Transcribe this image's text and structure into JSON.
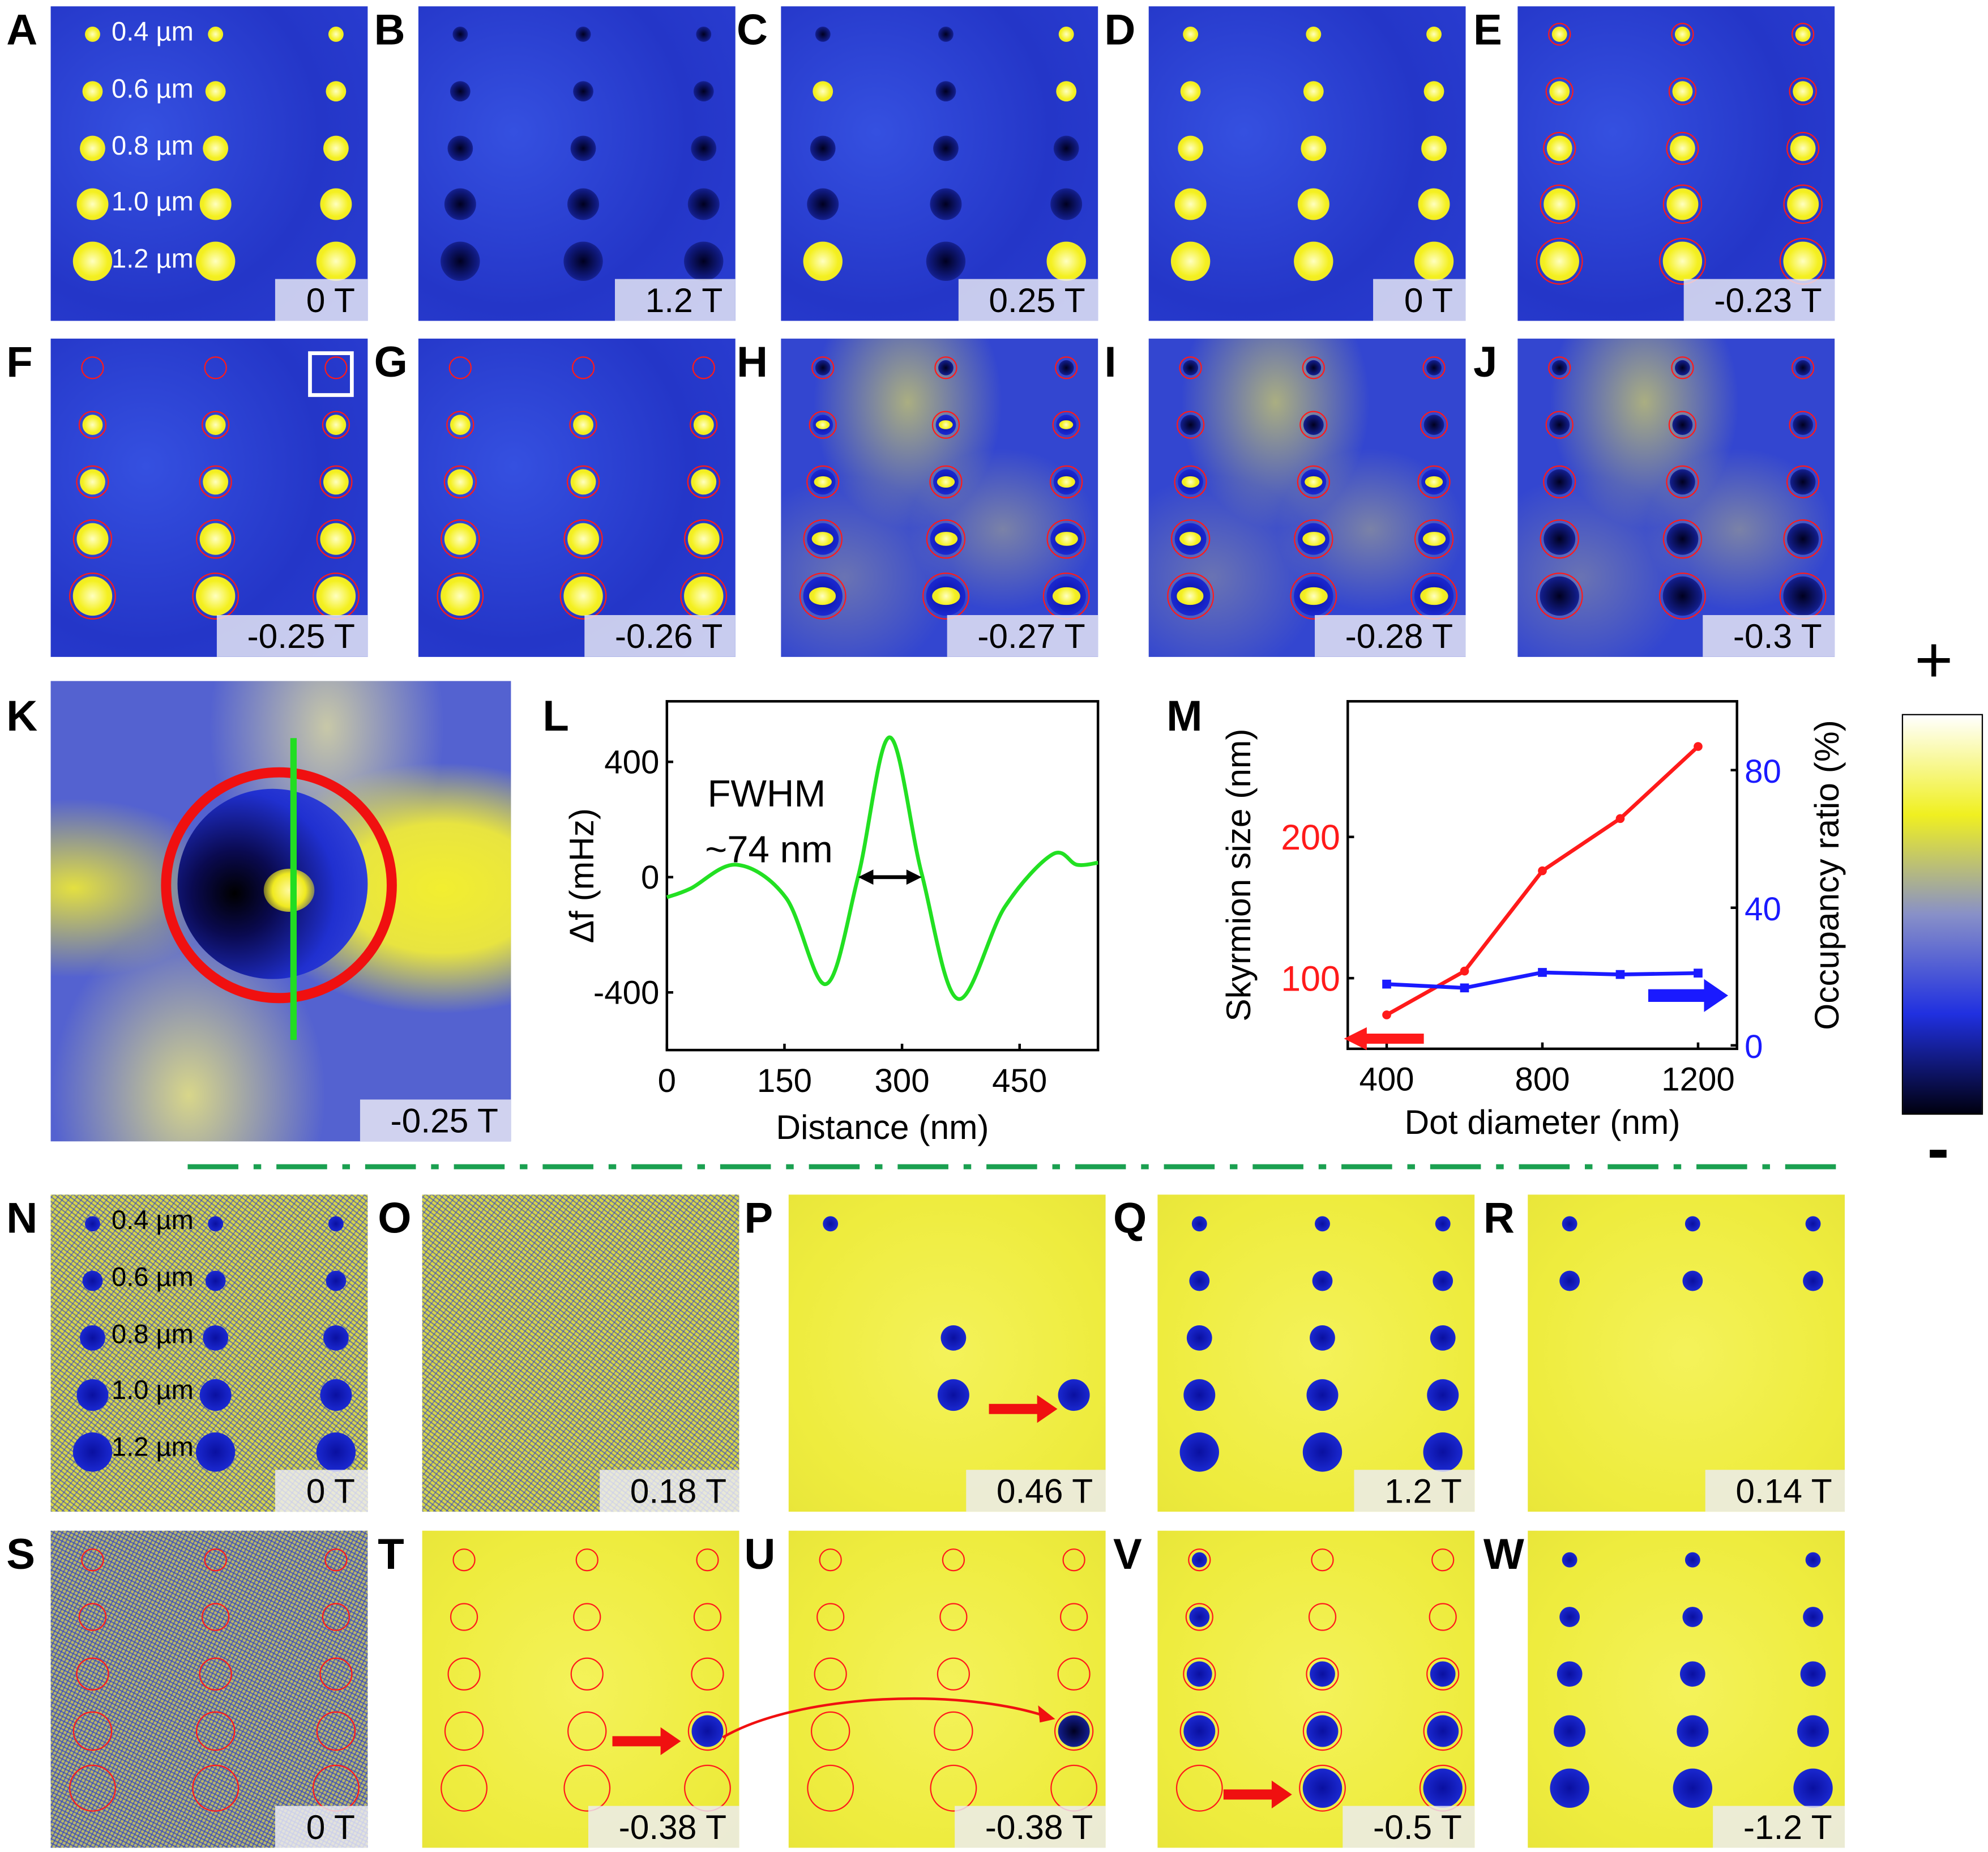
{
  "panels_top": [
    {
      "letter": "A",
      "field": "0 T"
    },
    {
      "letter": "B",
      "field": "1.2 T"
    },
    {
      "letter": "C",
      "field": "0.25 T"
    },
    {
      "letter": "D",
      "field": "0 T"
    },
    {
      "letter": "E",
      "field": "-0.23 T"
    },
    {
      "letter": "F",
      "field": "-0.25 T"
    },
    {
      "letter": "G",
      "field": "-0.26 T"
    },
    {
      "letter": "H",
      "field": "-0.27 T"
    },
    {
      "letter": "I",
      "field": "-0.28 T"
    },
    {
      "letter": "J",
      "field": "-0.3 T"
    }
  ],
  "panel_k": {
    "letter": "K",
    "field": "-0.25 T"
  },
  "panels_bottom": [
    {
      "letter": "N",
      "field": "0 T"
    },
    {
      "letter": "O",
      "field": "0.18 T"
    },
    {
      "letter": "P",
      "field": "0.46 T"
    },
    {
      "letter": "Q",
      "field": "1.2 T"
    },
    {
      "letter": "R",
      "field": "0.14 T"
    },
    {
      "letter": "S",
      "field": "0 T"
    },
    {
      "letter": "T",
      "field": "-0.38 T"
    },
    {
      "letter": "U",
      "field": "-0.38 T"
    },
    {
      "letter": "V",
      "field": "-0.5 T"
    },
    {
      "letter": "W",
      "field": "-1.2 T"
    }
  ],
  "dot_sizes": [
    "0.4 µm",
    "0.6 µm",
    "0.8 µm",
    "1.0 µm",
    "1.2 µm"
  ],
  "colorbar": {
    "plus": "+",
    "minus": "-",
    "colors": [
      "#000010",
      "#2030e0",
      "#8890c8",
      "#f0f020",
      "#ffffff"
    ]
  },
  "chart_data": [
    {
      "letter": "L",
      "type": "line",
      "xlabel": "Distance (nm)",
      "ylabel": "Δf (mHz)",
      "xlim": [
        0,
        550
      ],
      "ylim": [
        -600,
        610
      ],
      "xticks": [
        "0",
        "150",
        "300",
        "450"
      ],
      "yticks": [
        "400",
        "0",
        "-400"
      ],
      "color": "#22e022",
      "annotation": {
        "line1": "FWHM",
        "line2": "~74 nm",
        "from": 244,
        "to": 325
      },
      "x": [
        0,
        30,
        89,
        152,
        203,
        244,
        284,
        325,
        371,
        431,
        492,
        523,
        550
      ],
      "y": [
        -70,
        -40,
        43,
        -72,
        -371,
        2,
        485,
        13,
        -422,
        -104,
        79,
        43,
        50
      ]
    },
    {
      "letter": "M",
      "type": "line",
      "xlabel": "Dot diameter (nm)",
      "ylabel_left": "Skyrmion size (nm)",
      "ylabel_right": "Occupancy ratio (%)",
      "xlim": [
        300,
        1300
      ],
      "ylim_left": [
        50,
        296
      ],
      "ylim_right": [
        -1,
        100
      ],
      "xticks": [
        "400",
        "800",
        "1200"
      ],
      "yticks_left": [
        "100",
        "200"
      ],
      "yticks_right": [
        "0",
        "40",
        "80"
      ],
      "x": [
        400,
        600,
        800,
        1000,
        1200
      ],
      "series": [
        {
          "axis": "left",
          "color": "#ff1a1a",
          "values": [
            74,
            105,
            176,
            213,
            264
          ]
        },
        {
          "axis": "right",
          "color": "#1a1aff",
          "values": [
            17.8,
            16.7,
            21.2,
            20.6,
            21
          ]
        }
      ]
    }
  ]
}
